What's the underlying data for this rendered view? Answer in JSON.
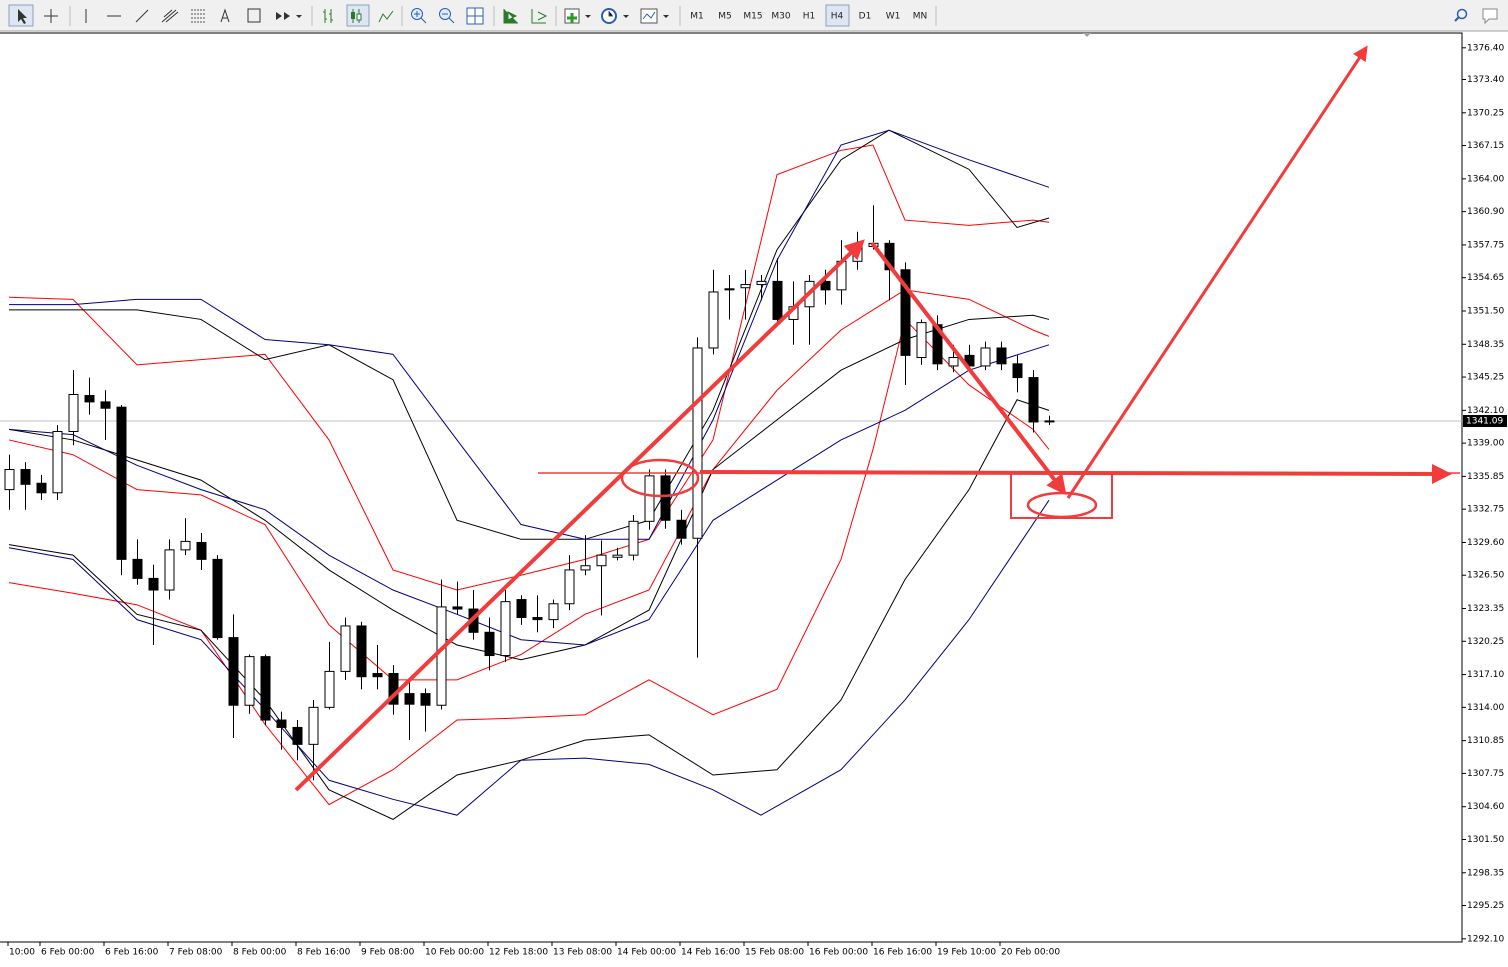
{
  "toolbar": {
    "timeframes": [
      "M1",
      "M5",
      "M15",
      "M30",
      "H1",
      "H4",
      "D1",
      "W1",
      "MN"
    ]
  },
  "chart_data": {
    "type": "candlestick",
    "categories": [
      "10:00",
      null,
      "6 Feb 00:00",
      null,
      null,
      null,
      "6 Feb 16:00",
      null,
      null,
      null,
      "7 Feb 08:00",
      null,
      null,
      null,
      "8 Feb 00:00",
      null,
      null,
      null,
      "8 Feb 16:00",
      null,
      null,
      null,
      "9 Feb 08:00",
      null,
      null,
      null,
      "10 Feb 00:00",
      null,
      null,
      null,
      "12 Feb 18:00",
      null,
      null,
      null,
      "13 Feb 08:00",
      null,
      null,
      null,
      "14 Feb 00:00",
      null,
      null,
      null,
      "14 Feb 16:00",
      null,
      null,
      null,
      "15 Feb 08:00",
      null,
      null,
      null,
      "16 Feb 00:00",
      null,
      null,
      null,
      "16 Feb 16:00",
      null,
      null,
      null,
      "19 Feb 10:00",
      null,
      null,
      null,
      "20 Feb 00:00",
      null,
      null,
      null
    ],
    "open": [
      1334.6,
      1336.5,
      1335.2,
      1334.3,
      1340.1,
      1343.5,
      1342.9,
      1342.4,
      1328.0,
      1326.2,
      1325.1,
      1328.9,
      1329.6,
      1328.0,
      1320.6,
      1314.2,
      1318.8,
      1312.8,
      1312.1,
      1310.5,
      1314.0,
      1317.4,
      1321.7,
      1317.2,
      1317.2,
      1315.3,
      1315.3,
      1314.2,
      1323.5,
      1323.3,
      1321.1,
      1318.9,
      1324.2,
      1322.5,
      1322.3,
      1323.8,
      1327.0,
      1327.4,
      1328.2,
      1328.4,
      1331.6,
      1335.9,
      1331.7,
      1330.0,
      1348.0,
      1353.6,
      1353.7,
      1354.0,
      1354.3,
      1350.7,
      1351.9,
      1354.3,
      1353.5,
      1356.2,
      1357.6,
      1357.9,
      1355.4,
      1347.1,
      1350.2,
      1346.3,
      1347.3,
      1346.3,
      1348.0,
      1346.5,
      1345.2,
      1341.1
    ],
    "high": [
      1337.9,
      1337.2,
      1336.0,
      1340.7,
      1345.9,
      1345.2,
      1344.0,
      1342.6,
      1329.9,
      1327.5,
      1329.9,
      1331.9,
      1330.5,
      1328.4,
      1322.8,
      1319.0,
      1319.0,
      1313.6,
      1312.8,
      1314.7,
      1320.2,
      1322.5,
      1322.1,
      1319.9,
      1318.0,
      1316.6,
      1315.8,
      1326.1,
      1325.9,
      1325.1,
      1322.5,
      1325.1,
      1324.6,
      1324.6,
      1324.2,
      1328.4,
      1330.3,
      1329.8,
      1329.1,
      1332.2,
      1336.5,
      1336.5,
      1332.7,
      1349.0,
      1355.4,
      1354.9,
      1355.4,
      1354.9,
      1356.5,
      1354.3,
      1354.9,
      1355.4,
      1358.2,
      1359.0,
      1361.5,
      1358.2,
      1356.1,
      1350.7,
      1351.1,
      1348.3,
      1348.3,
      1348.6,
      1348.6,
      1347.3,
      1345.9,
      1341.6
    ],
    "low": [
      1332.7,
      1332.7,
      1333.6,
      1333.6,
      1338.8,
      1341.7,
      1339.3,
      1326.5,
      1325.6,
      1319.9,
      1324.2,
      1328.4,
      1327.0,
      1320.4,
      1311.1,
      1313.4,
      1312.3,
      1310.0,
      1309.0,
      1307.1,
      1313.8,
      1316.6,
      1315.7,
      1315.7,
      1313.3,
      1310.9,
      1311.7,
      1313.8,
      1322.8,
      1320.4,
      1317.5,
      1318.3,
      1321.8,
      1321.1,
      1321.5,
      1323.2,
      1326.5,
      1322.7,
      1327.9,
      1327.9,
      1330.8,
      1330.9,
      1329.4,
      1318.7,
      1347.4,
      1350.7,
      1350.7,
      1352.5,
      1350.2,
      1348.3,
      1348.3,
      1352.1,
      1352.1,
      1355.4,
      1357.3,
      1352.5,
      1344.5,
      1346.4,
      1345.9,
      1345.7,
      1345.9,
      1345.9,
      1345.9,
      1343.8,
      1340.0,
      1340.7
    ],
    "close": [
      1336.5,
      1335.1,
      1334.3,
      1340.1,
      1343.6,
      1342.9,
      1342.3,
      1328.0,
      1326.2,
      1325.1,
      1328.9,
      1329.7,
      1328.0,
      1320.6,
      1314.2,
      1318.8,
      1312.8,
      1312.1,
      1310.5,
      1314.0,
      1317.4,
      1321.7,
      1316.9,
      1316.9,
      1314.3,
      1314.3,
      1314.2,
      1323.5,
      1323.3,
      1321.1,
      1318.9,
      1324.0,
      1322.5,
      1322.3,
      1323.8,
      1327.0,
      1327.4,
      1328.4,
      1328.4,
      1331.6,
      1335.9,
      1331.7,
      1330.0,
      1348.0,
      1353.3,
      1353.5,
      1354.0,
      1354.3,
      1350.7,
      1351.9,
      1354.3,
      1353.5,
      1356.2,
      1357.6,
      1357.9,
      1355.4,
      1347.3,
      1350.4,
      1346.5,
      1347.1,
      1346.3,
      1348.0,
      1346.5,
      1345.2,
      1341.0,
      1341.1
    ],
    "up_color": "#ffffff",
    "down_color": "#000000",
    "bands": [
      {
        "color": "#ff0000",
        "x": [
          0,
          4,
          8,
          12,
          16,
          20,
          24,
          28,
          32,
          36,
          40,
          44,
          48,
          52,
          54,
          56,
          60,
          64,
          65
        ],
        "values": [
          1352.8,
          1352.6,
          1346.4,
          1346.9,
          1347.4,
          1339.3,
          1327.0,
          1325.1,
          1326.5,
          1328.0,
          1329.9,
          1339.3,
          1364.4,
          1366.7,
          1367.2,
          1360.1,
          1359.6,
          1360.1,
          1359.9
        ]
      },
      {
        "color": "#ff0000",
        "x": [
          0,
          4,
          8,
          12,
          16,
          20,
          24,
          28,
          32,
          36,
          40,
          44,
          48,
          52,
          56,
          60,
          64,
          65
        ],
        "values": [
          1339.3,
          1337.9,
          1334.6,
          1334.1,
          1331.3,
          1321.8,
          1316.6,
          1316.6,
          1319.0,
          1322.8,
          1325.1,
          1336.5,
          1344.0,
          1349.7,
          1353.5,
          1352.6,
          1349.7,
          1349.1
        ]
      },
      {
        "color": "#ff0000",
        "x": [
          0,
          4,
          8,
          12,
          16,
          20,
          24,
          28,
          32,
          36,
          40,
          44,
          48,
          52,
          54,
          56,
          60,
          64,
          65
        ],
        "values": [
          1325.8,
          1324.8,
          1323.7,
          1321.3,
          1312.4,
          1304.8,
          1308.1,
          1312.8,
          1313.0,
          1313.3,
          1316.6,
          1313.3,
          1315.7,
          1328.0,
          1338.4,
          1350.7,
          1344.5,
          1340.3,
          1338.4
        ]
      },
      {
        "color": "#000000",
        "x": [
          0,
          8,
          12,
          16,
          20,
          24,
          28,
          32,
          36,
          40,
          44,
          48,
          52,
          55,
          60,
          63,
          65
        ],
        "values": [
          1351.6,
          1351.6,
          1350.7,
          1346.9,
          1348.3,
          1345.0,
          1331.7,
          1329.9,
          1329.9,
          1331.7,
          1342.1,
          1357.3,
          1365.8,
          1368.6,
          1364.9,
          1359.4,
          1360.3
        ]
      },
      {
        "color": "#000000",
        "x": [
          0,
          4,
          8,
          12,
          16,
          20,
          24,
          28,
          32,
          36,
          40,
          44,
          48,
          52,
          56,
          60,
          64,
          65
        ],
        "values": [
          1340.3,
          1339.3,
          1337.4,
          1335.5,
          1331.7,
          1327.0,
          1323.2,
          1319.9,
          1318.5,
          1319.9,
          1323.2,
          1336.5,
          1341.2,
          1345.9,
          1348.8,
          1350.7,
          1351.1,
          1350.7
        ]
      },
      {
        "color": "#000000",
        "x": [
          0,
          4,
          8,
          12,
          16,
          20,
          24,
          28,
          32,
          36,
          40,
          44,
          48,
          52,
          56,
          60,
          63,
          65
        ],
        "values": [
          1329.4,
          1328.4,
          1322.8,
          1321.3,
          1314.7,
          1306.2,
          1303.4,
          1307.6,
          1309.0,
          1310.9,
          1311.4,
          1307.6,
          1308.1,
          1314.7,
          1326.1,
          1334.6,
          1343.1,
          1342.1
        ]
      },
      {
        "color": "#000080",
        "x": [
          0,
          4,
          8,
          12,
          16,
          20,
          24,
          28,
          32,
          36,
          40,
          44,
          48,
          52,
          55,
          60,
          65
        ],
        "values": [
          1352.1,
          1352.1,
          1352.6,
          1352.6,
          1348.8,
          1348.3,
          1347.4,
          1339.3,
          1331.3,
          1329.9,
          1329.9,
          1341.2,
          1356.3,
          1367.2,
          1368.6,
          1365.8,
          1363.2
        ]
      },
      {
        "color": "#000080",
        "x": [
          0,
          4,
          8,
          12,
          16,
          20,
          24,
          28,
          32,
          36,
          40,
          44,
          48,
          52,
          56,
          60,
          65
        ],
        "values": [
          1340.3,
          1339.8,
          1336.9,
          1334.6,
          1332.7,
          1328.4,
          1325.1,
          1322.8,
          1320.4,
          1319.9,
          1322.3,
          1331.7,
          1335.5,
          1339.3,
          1342.1,
          1345.9,
          1348.3
        ]
      },
      {
        "color": "#000080",
        "x": [
          0,
          4,
          8,
          12,
          16,
          20,
          24,
          28,
          32,
          36,
          40,
          44,
          47,
          52,
          56,
          60,
          65
        ],
        "values": [
          1329.1,
          1328.0,
          1322.3,
          1320.4,
          1313.8,
          1307.1,
          1305.3,
          1303.8,
          1309.0,
          1309.2,
          1308.6,
          1306.2,
          1303.8,
          1308.1,
          1314.7,
          1322.3,
          1333.6
        ]
      }
    ],
    "last_price": 1341.09,
    "ylim": [
      1291.8,
      1377.8
    ],
    "yticks": [
      {
        "value": 1376.4,
        "label": "1376.40"
      },
      {
        "value": 1373.4,
        "label": "1373.40"
      },
      1370.25,
      1367.15,
      {
        "value": 1364,
        "label": "1364.00"
      },
      {
        "value": 1360.9,
        "label": "1360.90"
      },
      1357.75,
      1354.65,
      {
        "value": 1351.5,
        "label": "1351.50"
      },
      1348.35,
      1345.25,
      {
        "value": 1342.1,
        "label": "1342.10"
      },
      {
        "value": 1339,
        "label": "1339.00"
      },
      1335.85,
      1332.75,
      {
        "value": 1329.6,
        "label": "1329.60"
      },
      {
        "value": 1326.5,
        "label": "1326.50"
      },
      1323.35,
      1320.25,
      {
        "value": 1317.1,
        "label": "1317.10"
      },
      {
        "value": 1314,
        "label": "1314.00"
      },
      1310.85,
      1307.75,
      {
        "value": 1304.6,
        "label": "1304.60"
      },
      {
        "value": 1301.5,
        "label": "1301.50"
      },
      1298.35,
      1295.25,
      {
        "value": 1292.1,
        "label": "1292.10"
      }
    ]
  }
}
